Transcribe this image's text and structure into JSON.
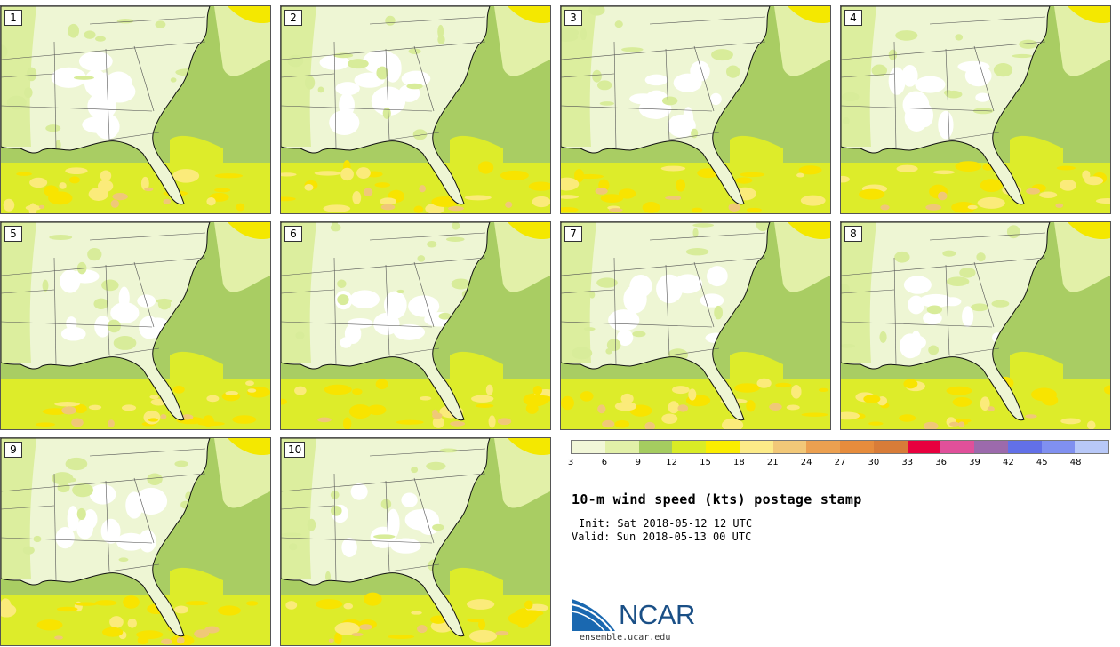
{
  "members": [
    {
      "label": "1"
    },
    {
      "label": "2"
    },
    {
      "label": "3"
    },
    {
      "label": "4"
    },
    {
      "label": "5"
    },
    {
      "label": "6"
    },
    {
      "label": "7"
    },
    {
      "label": "8"
    },
    {
      "label": "9"
    },
    {
      "label": "10"
    }
  ],
  "colorbar": {
    "colors": [
      "#f2f7d8",
      "#e2f0a8",
      "#a5cc60",
      "#d9ec26",
      "#fbed00",
      "#fceb88",
      "#f2c878",
      "#eca050",
      "#e68c3c",
      "#d87c38",
      "#e8003e",
      "#e0509a",
      "#9c6aac",
      "#6270e8",
      "#8090f0",
      "#b8c8f8"
    ],
    "tick_labels": [
      "3",
      "6",
      "9",
      "12",
      "15",
      "18",
      "21",
      "24",
      "27",
      "30",
      "33",
      "36",
      "39",
      "42",
      "45",
      "48"
    ]
  },
  "title": "10-m wind speed (kts) postage stamp",
  "init_label": "Init: Sat 2018-05-12 12 UTC",
  "valid_label": "Valid: Sun 2018-05-13 00 UTC",
  "logo": {
    "name": "NCAR",
    "url": "ensemble.ucar.edu"
  }
}
